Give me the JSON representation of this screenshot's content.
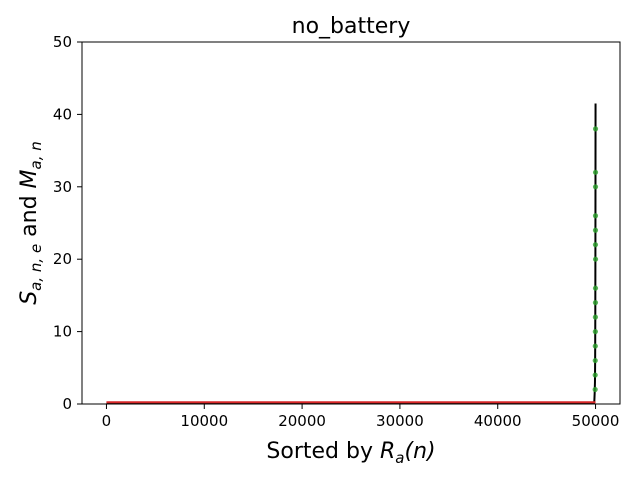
{
  "chart_data": {
    "type": "scatter",
    "title": "no_battery",
    "xlabel": {
      "text": "Sorted by ",
      "math_main": "R",
      "math_sub": "a",
      "math_tail": "(n)"
    },
    "ylabel": {
      "s_main": "S",
      "s_sub": "a, n, e",
      "joiner": " and ",
      "m_main": "M",
      "m_sub": "a, n"
    },
    "xlim": [
      -2500,
      52500
    ],
    "ylim": [
      0,
      50
    ],
    "xticks": [
      0,
      10000,
      20000,
      30000,
      40000,
      50000
    ],
    "yticks": [
      0,
      10,
      20,
      30,
      40,
      50
    ],
    "grid": false,
    "series": [
      {
        "kind": "line",
        "color": "#000000",
        "x": [
          0,
          49850,
          49880,
          49910,
          49940,
          49960,
          49975,
          49985,
          49993,
          50000
        ],
        "y": [
          0.1,
          0.1,
          0.5,
          1.5,
          3,
          6,
          12,
          20,
          30,
          41.5
        ]
      },
      {
        "kind": "line",
        "color": "#d62728",
        "x": [
          0,
          50000
        ],
        "y": [
          0.25,
          0.25
        ]
      },
      {
        "kind": "points",
        "color": "#2ca02c",
        "x": [
          49960,
          49965,
          49970,
          49975,
          49980,
          49985,
          49990,
          49995,
          50000,
          49990,
          49993,
          49995,
          49997,
          49998,
          49999
        ],
        "y": [
          2,
          4,
          6,
          8,
          10,
          12,
          14,
          16,
          20,
          22,
          24,
          26,
          30,
          32,
          38
        ]
      }
    ]
  }
}
